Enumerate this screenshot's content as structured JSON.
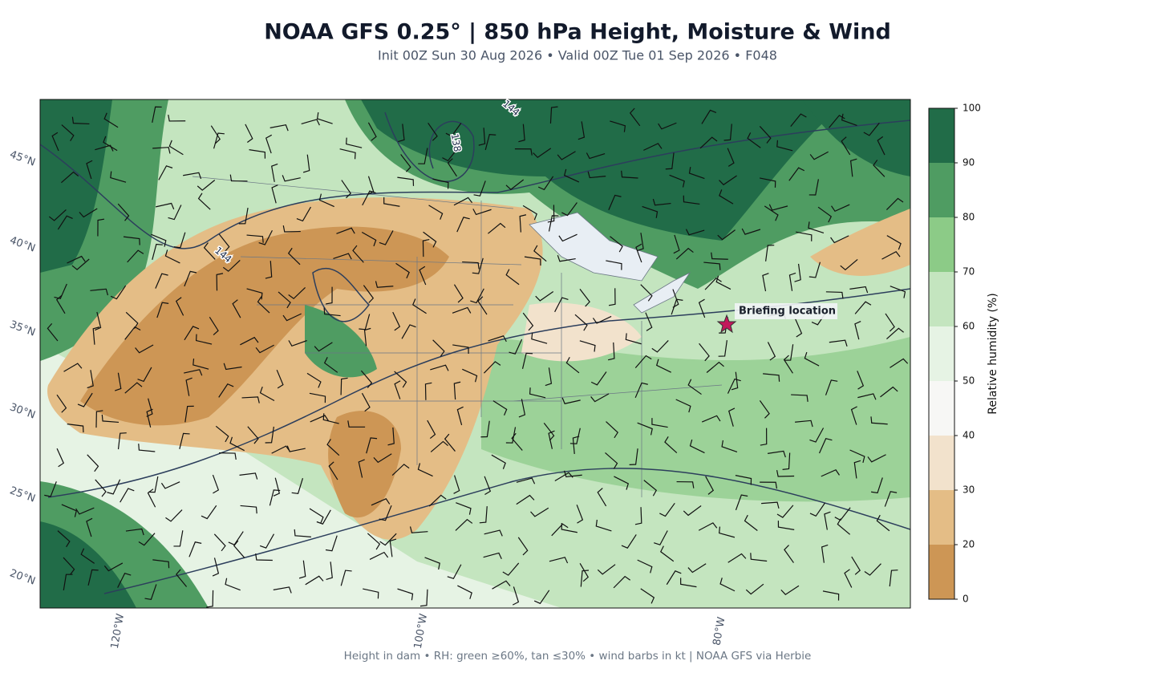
{
  "title": "NOAA GFS 0.25°  |  850 hPa Height, Moisture & Wind",
  "subtitle": "Init 00Z Sun 30 Aug 2026  •  Valid 00Z Tue 01 Sep 2026  •  F048",
  "footer": "Height in dam • RH: green ≥60%, tan ≤30% • wind barbs in kt  |  NOAA GFS via Herbie",
  "map": {
    "lat_labels": [
      "45°N",
      "40°N",
      "35°N",
      "30°N",
      "25°N",
      "20°N"
    ],
    "lon_labels": [
      "120°W",
      "100°W",
      "80°W"
    ],
    "contour_labels": [
      "144",
      "138",
      "144"
    ],
    "annotation": "Briefing location"
  },
  "colorbar": {
    "label": "Relative humidity (%)",
    "ticks": [
      0,
      20,
      30,
      40,
      50,
      60,
      70,
      80,
      90,
      100
    ],
    "colors": [
      "#cd9655",
      "#e4bd86",
      "#f2e2cc",
      "#f7f7f5",
      "#e6f3e4",
      "#c4e5bf",
      "#8ccb87",
      "#4f9c62",
      "#216c48"
    ]
  }
}
